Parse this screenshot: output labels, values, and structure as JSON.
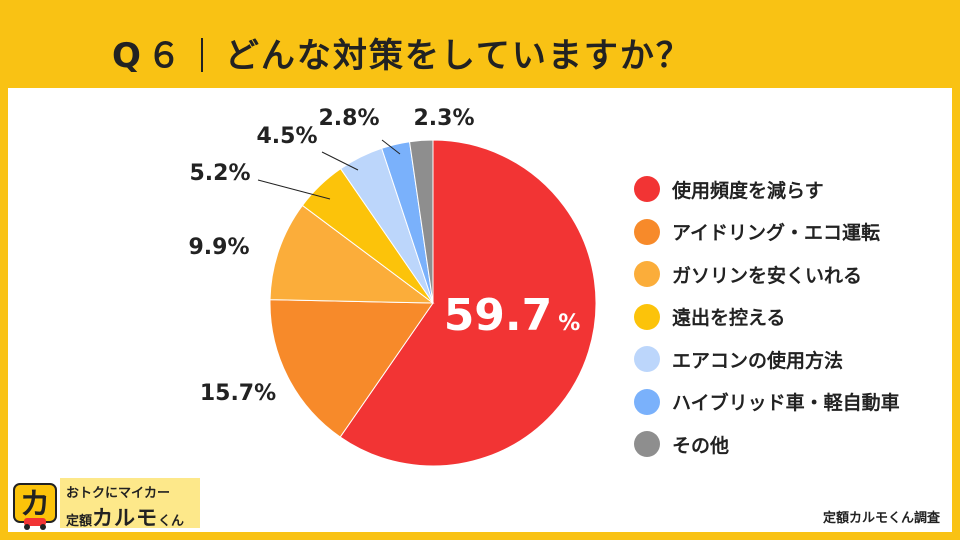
{
  "title": {
    "question": "Q６",
    "text": "どんな対策をしていますか？"
  },
  "source": "定額カルモくん調査",
  "logo": {
    "line1": "おトクにマイカー",
    "line2_prefix": "定額",
    "line2_brand": "カルモ",
    "line2_suffix": "くん"
  },
  "chart_data": {
    "type": "pie",
    "start_angle_deg": 0,
    "direction": "clockwise",
    "slices": [
      {
        "label": "使用頻度を減らす",
        "value": 59.7,
        "display": "59.7",
        "unit": "%",
        "color": "#f23434"
      },
      {
        "label": "アイドリング・エコ運転",
        "value": 15.7,
        "display": "15.7%",
        "color": "#f78a2a"
      },
      {
        "label": "ガソリンを安くいれる",
        "value": 9.9,
        "display": "9.9%",
        "color": "#fbad3a"
      },
      {
        "label": "遠出を控える",
        "value": 5.2,
        "display": "5.2%",
        "color": "#fcc30a"
      },
      {
        "label": "エアコンの使用方法",
        "value": 4.5,
        "display": "4.5%",
        "color": "#bcd6fb"
      },
      {
        "label": "ハイブリッド車・軽自動車",
        "value": 2.8,
        "display": "2.8%",
        "color": "#7ab1fb"
      },
      {
        "label": "その他",
        "value": 2.3,
        "display": "2.3%",
        "color": "#8e8e8e"
      }
    ]
  }
}
